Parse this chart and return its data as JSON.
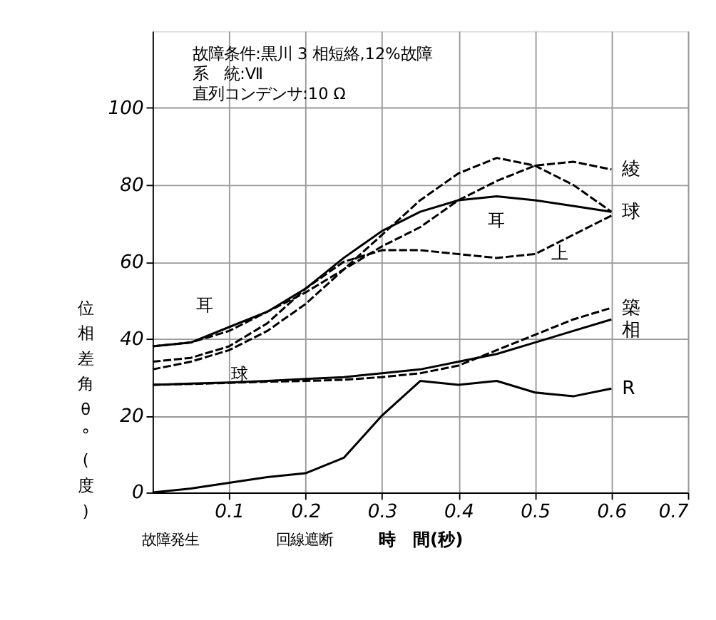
{
  "chart_data": {
    "type": "line",
    "xlabel": "時　間(秒)",
    "ylabel": "位相差角θ°(度)",
    "x": [
      0,
      0.05,
      0.1,
      0.15,
      0.2,
      0.25,
      0.3,
      0.35,
      0.4,
      0.45,
      0.5,
      0.55,
      0.6
    ],
    "series": [
      {
        "name": "綾",
        "color": "#000000",
        "line_style": "dashed",
        "values": [
          38,
          39,
          42,
          47,
          52,
          58,
          64,
          69,
          76,
          81,
          85,
          86,
          84
        ]
      },
      {
        "name": "球",
        "color": "#000000",
        "line_style": "dashed",
        "values": [
          32,
          34,
          37,
          42,
          49,
          58,
          67,
          76,
          83,
          87,
          85,
          80,
          73
        ]
      },
      {
        "color": "#000000",
        "line_style": "solid",
        "values": [
          38,
          39,
          43,
          47,
          53,
          61,
          68,
          73,
          76,
          77,
          76,
          74.5,
          73
        ]
      },
      {
        "color": "#000000",
        "line_style": "dashed",
        "values": [
          34,
          35,
          38,
          44,
          53,
          60,
          63,
          63,
          62,
          61,
          62,
          67,
          72
        ]
      },
      {
        "name": "築",
        "color": "#000000",
        "line_style": "dashed",
        "values": [
          28,
          28.2,
          28.5,
          28.8,
          29,
          29.3,
          30,
          31,
          33,
          37,
          41,
          45,
          48
        ]
      },
      {
        "name": "相",
        "color": "#000000",
        "line_style": "solid",
        "values": [
          28,
          28.3,
          28.6,
          29,
          29.5,
          30,
          31,
          32,
          34,
          36,
          39,
          42,
          45
        ]
      },
      {
        "name": "R",
        "color": "#000000",
        "line_style": "solid",
        "values": [
          0,
          1,
          2.5,
          4,
          5,
          9,
          20,
          29,
          28,
          29,
          26,
          25,
          27
        ]
      }
    ],
    "annotations": [
      "故障条件:黒川 3 相短絡,12%故障",
      "系　統:Ⅶ",
      "直列コンデンサ:10 Ω",
      {
        "text": "耳",
        "x": 0.45,
        "y": 77
      },
      {
        "text": "耳",
        "x": 0.1,
        "y": 43
      },
      {
        "text": "球",
        "x": 0.1,
        "y": 37
      },
      {
        "text": "上",
        "x": 0.55,
        "y": 67
      },
      "故障発生",
      "回線遮断"
    ],
    "xlim": [
      0,
      0.7
    ],
    "ylim": [
      0,
      120
    ],
    "xticks": [
      0.1,
      0.2,
      0.3,
      0.4,
      0.5,
      0.6,
      0.7
    ],
    "yticks": [
      0,
      20,
      40,
      60,
      80,
      100
    ],
    "grid": true,
    "marker": "none"
  }
}
